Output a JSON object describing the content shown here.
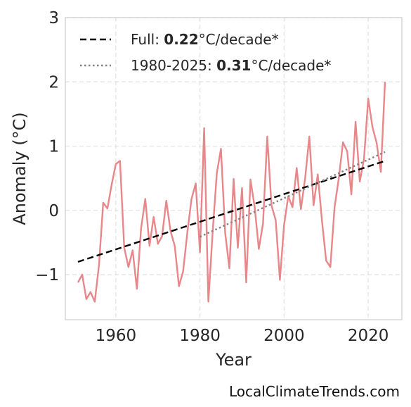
{
  "chart_data": {
    "type": "line",
    "xlabel": "Year",
    "ylabel": "Anomaly (°C)",
    "xlim": [
      1948,
      2028
    ],
    "ylim": [
      -1.7,
      3.0
    ],
    "xticks": [
      1960,
      1980,
      2000,
      2020
    ],
    "yticks": [
      3,
      2,
      1,
      0,
      -1
    ],
    "ytick_labels": [
      "3",
      "2",
      "1",
      "0",
      "−1"
    ],
    "grid": true,
    "legend_position": "top-left",
    "colors": {
      "series": "#e8868a",
      "full_trend": "#000000",
      "recent_trend": "#808080",
      "grid": "#e0e0e0",
      "frame": "#cccccc"
    },
    "series": [
      {
        "x": [
          1951,
          1952,
          1953,
          1954,
          1955,
          1956,
          1957,
          1958,
          1959,
          1960,
          1961,
          1962,
          1963,
          1964,
          1965,
          1966,
          1967,
          1968,
          1969,
          1970,
          1971,
          1972,
          1973,
          1974,
          1975,
          1976,
          1977,
          1978,
          1979,
          1980,
          1981,
          1982,
          1983,
          1984,
          1985,
          1986,
          1987,
          1988,
          1989,
          1990,
          1991,
          1992,
          1993,
          1994,
          1995,
          1996,
          1997,
          1998,
          1999,
          2000,
          2001,
          2002,
          2003,
          2004,
          2005,
          2006,
          2007,
          2008,
          2009,
          2010,
          2011,
          2012,
          2013,
          2014,
          2015,
          2016,
          2017,
          2018,
          2019,
          2020,
          2021,
          2022,
          2023,
          2024
        ],
        "values": [
          -1.12,
          -1.0,
          -1.38,
          -1.27,
          -1.42,
          -0.85,
          0.12,
          0.03,
          0.4,
          0.72,
          0.77,
          -0.58,
          -0.88,
          -0.62,
          -1.22,
          -0.28,
          0.18,
          -0.55,
          -0.1,
          -0.52,
          -0.4,
          0.15,
          -0.32,
          -0.55,
          -1.18,
          -0.95,
          -0.35,
          0.18,
          0.42,
          -0.65,
          1.28,
          -1.42,
          -0.35,
          0.58,
          0.96,
          -0.35,
          -0.9,
          0.49,
          -0.58,
          0.35,
          -1.12,
          0.48,
          0.06,
          -0.6,
          -0.2,
          1.15,
          0.08,
          -0.15,
          -1.08,
          -0.22,
          0.22,
          0.05,
          0.66,
          0.02,
          0.5,
          1.15,
          0.08,
          0.56,
          -0.15,
          -0.78,
          -0.88,
          0.05,
          0.5,
          1.06,
          0.92,
          0.25,
          1.38,
          0.45,
          0.8,
          1.74,
          1.3,
          1.05,
          0.6,
          2.0
        ]
      }
    ],
    "trend_full": {
      "label_prefix": "Full: ",
      "label_value": "0.22",
      "label_suffix": "°C/decade*",
      "start": [
        1951,
        -0.8
      ],
      "end": [
        2024,
        0.77
      ]
    },
    "trend_recent": {
      "label_prefix": "1980-2025: ",
      "label_value": "0.31",
      "label_suffix": "°C/decade*",
      "start": [
        1980,
        -0.41
      ],
      "end": [
        2024,
        0.91
      ]
    }
  },
  "watermark": "LocalClimateTrends.com"
}
